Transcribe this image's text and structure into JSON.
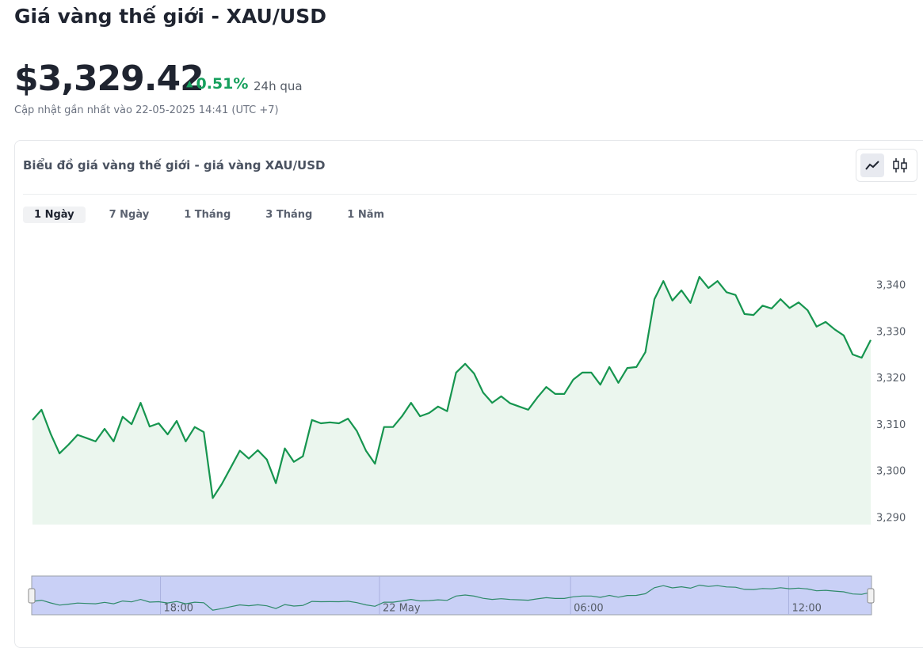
{
  "header": {
    "title": "Giá vàng thế giới - XAU/USD",
    "price": "$3,329.42",
    "change": "0.51%",
    "change_period": "24h qua",
    "updated": "Cập nhật gần nhất vào 22-05-2025 14:41 (UTC +7)"
  },
  "card": {
    "title": "Biểu đồ giá vàng thế giới - giá vàng XAU/USD",
    "ranges": [
      "1 Ngày",
      "7 Ngày",
      "1 Tháng",
      "3 Tháng",
      "1 Năm"
    ]
  },
  "chart_data": {
    "type": "line",
    "color": "#16954f",
    "fill": "#ebf6ee",
    "grid": false,
    "values": [
      3311.1,
      3313.3,
      3308.2,
      3303.9,
      3305.8,
      3307.9,
      3307.2,
      3306.5,
      3309.2,
      3306.5,
      3311.8,
      3310.2,
      3314.8,
      3309.7,
      3310.4,
      3308.0,
      3310.9,
      3306.5,
      3309.6,
      3308.5,
      3294.3,
      3297.3,
      3300.9,
      3304.5,
      3302.8,
      3304.6,
      3302.6,
      3297.5,
      3305.0,
      3302.1,
      3303.3,
      3311.1,
      3310.4,
      3310.6,
      3310.4,
      3311.4,
      3308.7,
      3304.5,
      3301.7,
      3309.6,
      3309.6,
      3311.9,
      3314.8,
      3311.9,
      3312.6,
      3314.0,
      3313.0,
      3321.3,
      3323.2,
      3321.1,
      3317.0,
      3314.8,
      3316.2,
      3314.7,
      3314.0,
      3313.3,
      3315.9,
      3318.2,
      3316.7,
      3316.7,
      3319.8,
      3321.3,
      3321.3,
      3318.7,
      3322.5,
      3319.1,
      3322.3,
      3322.5,
      3325.7,
      3337.1,
      3341.0,
      3336.8,
      3339.0,
      3336.3,
      3341.9,
      3339.5,
      3341.0,
      3338.6,
      3338.0,
      3333.9,
      3333.7,
      3335.7,
      3335.1,
      3337.1,
      3335.2,
      3336.4,
      3334.7,
      3331.2,
      3332.2,
      3330.6,
      3329.3,
      3325.2,
      3324.5,
      3328.3
    ],
    "ylim": [
      3288.6,
      3350.4
    ],
    "yticks": [
      {
        "value": 3290,
        "label": "3,290"
      },
      {
        "value": 3300,
        "label": "3,300"
      },
      {
        "value": 3310,
        "label": "3,310"
      },
      {
        "value": 3320,
        "label": "3,320"
      },
      {
        "value": 3330,
        "label": "3,330"
      },
      {
        "value": 3340,
        "label": "3,340"
      }
    ],
    "xlim": [
      0,
      93
    ],
    "xticks": [
      {
        "value": 14.2,
        "label": "18:00"
      },
      {
        "value": 38.5,
        "label": "22 May"
      },
      {
        "value": 59.7,
        "label": "06:00"
      },
      {
        "value": 83.9,
        "label": "12:00"
      }
    ]
  }
}
